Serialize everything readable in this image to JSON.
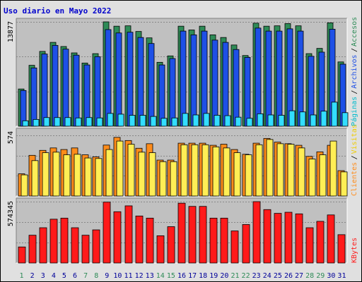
{
  "chart_data": {
    "type": "bar",
    "title": "Uso diario en Mayo 2022",
    "categories": [
      "1",
      "2",
      "3",
      "4",
      "5",
      "6",
      "7",
      "8",
      "9",
      "10",
      "11",
      "12",
      "13",
      "14",
      "15",
      "16",
      "17",
      "18",
      "19",
      "20",
      "21",
      "22",
      "23",
      "24",
      "25",
      "26",
      "27",
      "28",
      "29",
      "30",
      "31"
    ],
    "weekend_days": [
      "1",
      "7",
      "8",
      "14",
      "15",
      "21",
      "22",
      "28",
      "29"
    ],
    "panels": [
      {
        "id": "top",
        "y_max_label": "13877",
        "ylim": [
          0,
          13877
        ],
        "right_labels": [
          "Páginas",
          "Archivos",
          "Accesos"
        ],
        "series": [
          {
            "name": "Accesos",
            "color": "#2e8b57",
            "values": [
              4950,
              8100,
              9950,
              11150,
              10600,
              9750,
              8400,
              9650,
              13877,
              13300,
              13350,
              12600,
              11750,
              8500,
              9350,
              13300,
              12800,
              13300,
              12150,
              11800,
              10800,
              9400,
              13700,
              13300,
              13350,
              13650,
              13350,
              9650,
              10350,
              13750,
              8550
            ]
          },
          {
            "name": "Archivos",
            "color": "#1e50e6",
            "values": [
              4750,
              7750,
              9600,
              10750,
              10250,
              9450,
              8150,
              9250,
              12850,
              12400,
              12500,
              11800,
              11000,
              8150,
              9000,
              12650,
              12150,
              12650,
              11450,
              11150,
              10200,
              9150,
              13050,
              12650,
              12650,
              12950,
              12650,
              9300,
              9850,
              12900,
              8250
            ]
          },
          {
            "name": "Páginas",
            "color": "#33ddff",
            "values": [
              720,
              900,
              1150,
              1150,
              1150,
              1100,
              1150,
              1100,
              1700,
              1600,
              1450,
              1450,
              1300,
              1050,
              1100,
              1700,
              1500,
              1700,
              1450,
              1400,
              1200,
              1050,
              1650,
              1500,
              1450,
              2050,
              1900,
              1500,
              2000,
              3200,
              1800
            ]
          }
        ]
      },
      {
        "id": "middle",
        "y_max_label": "574",
        "ylim": [
          0,
          574
        ],
        "right_labels": [
          "Clientes",
          "Visitas"
        ],
        "series": [
          {
            "name": "Visitas",
            "color": "#ff8c1a",
            "values": [
              210,
              385,
              432,
              455,
              440,
              455,
              390,
              370,
              482,
              555,
              525,
              452,
              495,
              340,
              340,
              500,
              500,
              500,
              480,
              490,
              440,
              395,
              500,
              545,
              510,
              495,
              480,
              375,
              418,
              480,
              240
            ]
          },
          {
            "name": "Clientes",
            "color": "#ffee55",
            "values": [
              200,
              335,
              410,
              415,
              390,
              395,
              360,
              355,
              440,
              520,
              490,
              415,
              410,
              325,
              325,
              485,
              485,
              485,
              465,
              455,
              410,
              390,
              485,
              535,
              495,
              490,
              455,
              350,
              390,
              520,
              228
            ]
          }
        ]
      },
      {
        "id": "bottom",
        "y_max_label": "574345",
        "ylim": [
          0,
          574345
        ],
        "right_labels": [
          "KBytes"
        ],
        "series": [
          {
            "name": "KBytes",
            "color": "#ff1a1a",
            "values": [
              150000,
              260000,
              330000,
              410000,
              420000,
              330000,
              260000,
              310000,
              570000,
              480000,
              535000,
              440000,
              420000,
              255000,
              340000,
              560000,
              530000,
              530000,
              420000,
              420000,
              300000,
              360000,
              574345,
              500000,
              465000,
              475000,
              460000,
              330000,
              390000,
              450000,
              265000
            ]
          }
        ]
      }
    ]
  }
}
